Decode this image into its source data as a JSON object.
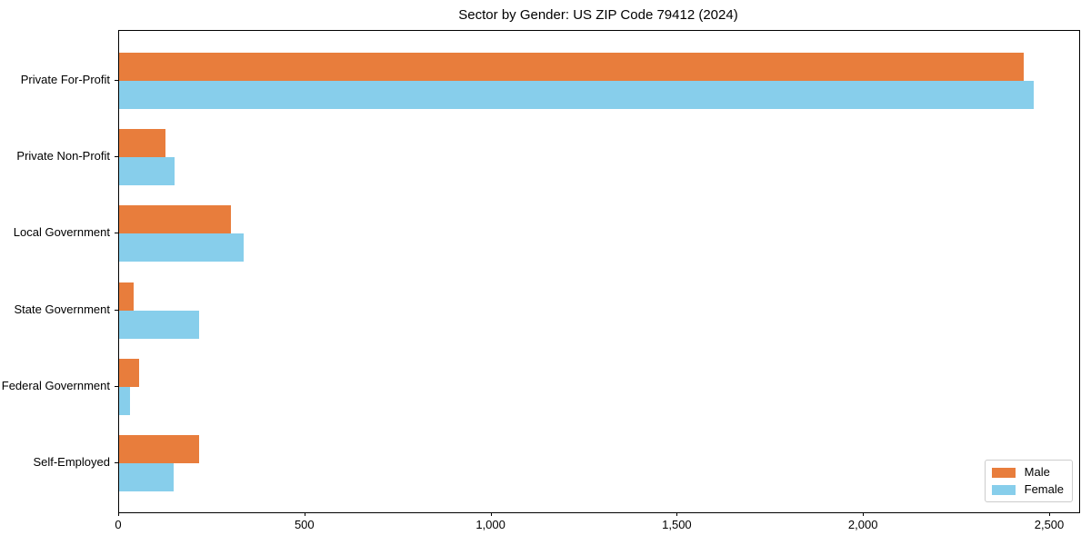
{
  "chart_data": {
    "type": "bar",
    "orientation": "horizontal",
    "title": "Sector by Gender: US ZIP Code 79412 (2024)",
    "categories": [
      "Private For-Profit",
      "Private Non-Profit",
      "Local Government",
      "State Government",
      "Federal Government",
      "Self-Employed"
    ],
    "series": [
      {
        "name": "Male",
        "color": "#e87d3c",
        "values": [
          2430,
          125,
          300,
          39,
          53,
          214
        ]
      },
      {
        "name": "Female",
        "color": "#87ceeb",
        "values": [
          2455,
          148,
          335,
          215,
          28,
          146
        ]
      }
    ],
    "xlabel": "",
    "ylabel": "",
    "xlim": [
      0,
      2578
    ],
    "xticks": {
      "values": [
        0,
        500,
        1000,
        1500,
        2000,
        2500
      ],
      "labels": [
        "0",
        "500",
        "1,000",
        "1,500",
        "2,000",
        "2,500"
      ]
    },
    "grid": false,
    "legend": {
      "position": "lower right"
    }
  }
}
